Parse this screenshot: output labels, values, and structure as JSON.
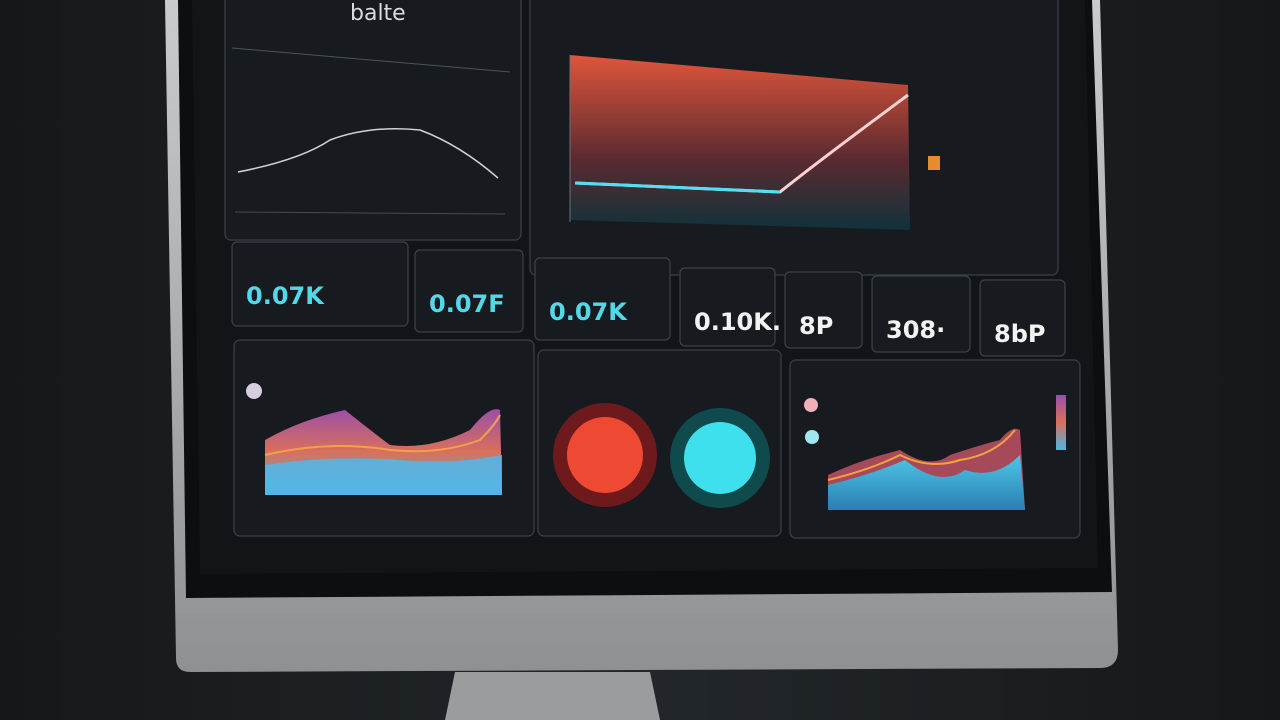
{
  "title": "balte",
  "kpis": [
    {
      "value": "0.07K",
      "color": "#52d8e6"
    },
    {
      "value": "0.07F",
      "color": "#52d8e6"
    },
    {
      "value": "0.07K",
      "color": "#52d8e6"
    },
    {
      "value": "0.10K.",
      "color": "#f2f2f2"
    },
    {
      "value": "8P",
      "color": "#f2f2f2"
    },
    {
      "value": "308·",
      "color": "#f2f2f2"
    },
    {
      "value": "8bP",
      "color": "#f2f2f2"
    }
  ]
}
